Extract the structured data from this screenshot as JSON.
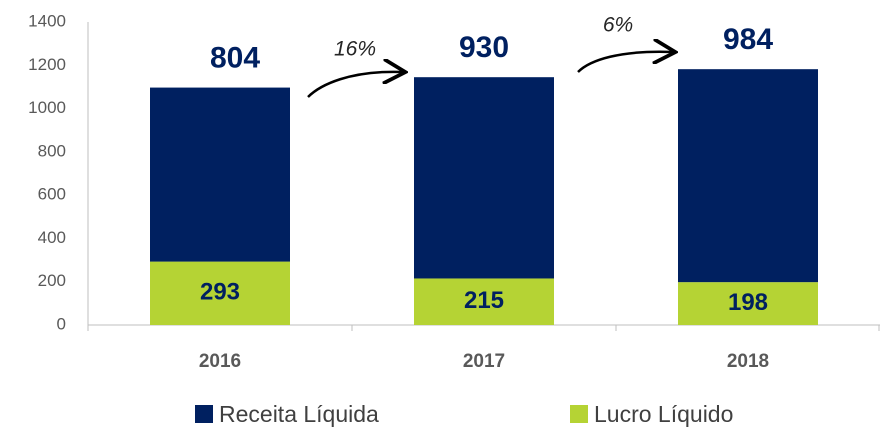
{
  "chart_data": {
    "type": "stacked_bar",
    "categories": [
      "2016",
      "2017",
      "2018"
    ],
    "series": [
      {
        "name": "Receita Líquida",
        "color": "#002060",
        "values": [
          804,
          930,
          984
        ]
      },
      {
        "name": "Lucro Líquido",
        "color": "#b5d334",
        "values": [
          293,
          215,
          198
        ]
      }
    ],
    "ylim": [
      0,
      1400
    ],
    "yticks": [
      0,
      200,
      400,
      600,
      800,
      1000,
      1200,
      1400
    ],
    "grid": false,
    "legend": "bottom",
    "annotations": [
      "16%",
      "6%"
    ]
  }
}
